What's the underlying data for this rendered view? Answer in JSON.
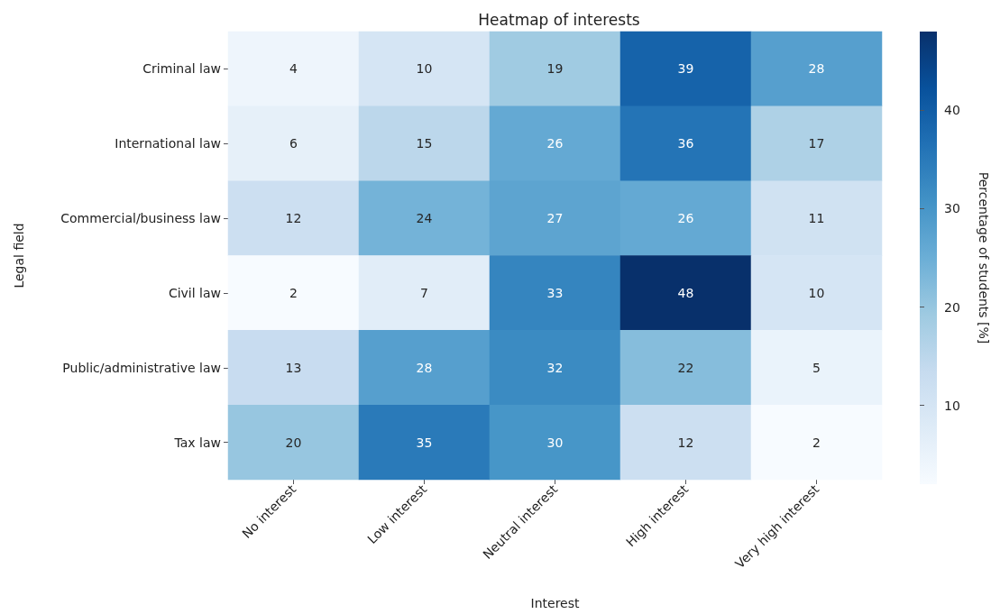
{
  "chart_data": {
    "type": "heatmap",
    "title": "Heatmap of interests",
    "xlabel": "Interest",
    "ylabel": "Legal field",
    "clabel": "Percentage of students [%]",
    "categories": [
      "No interest",
      "Low interest",
      "Neutral interest",
      "High interest",
      "Very high interest"
    ],
    "y_categories": [
      "Criminal law",
      "International law",
      "Commercial/business law",
      "Civil law",
      "Public/administrative law",
      "Tax law"
    ],
    "cells": [
      [
        4,
        10,
        19,
        39,
        28
      ],
      [
        6,
        15,
        26,
        36,
        17
      ],
      [
        12,
        24,
        27,
        26,
        11
      ],
      [
        2,
        7,
        33,
        48,
        10
      ],
      [
        13,
        28,
        32,
        22,
        5
      ],
      [
        20,
        35,
        30,
        12,
        2
      ]
    ],
    "clim": [
      2,
      48
    ],
    "cticks": [
      10,
      20,
      30,
      40
    ],
    "data_labels": true
  }
}
